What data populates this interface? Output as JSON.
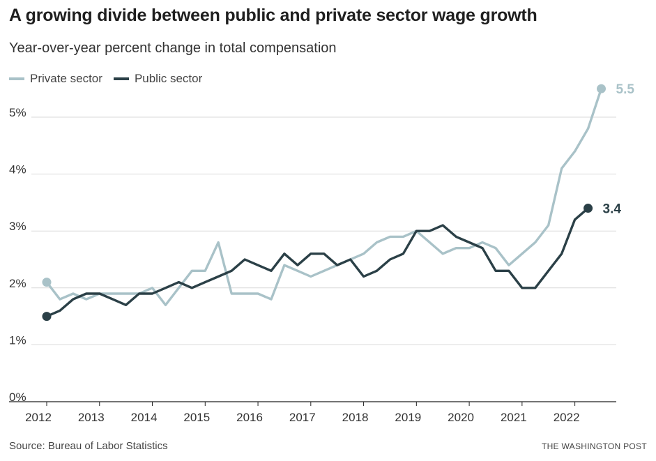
{
  "header": {
    "title": "A growing divide between public and private sector wage growth",
    "subtitle": "Year-over-year percent change in total compensation"
  },
  "footer": {
    "source": "Source: Bureau of Labor Statistics",
    "brand": "THE WASHINGTON POST"
  },
  "colors": {
    "private": "#a9c2c8",
    "public": "#2b4047",
    "grid": "#d9d9d9",
    "axis": "#222222"
  },
  "chart_data": {
    "type": "line",
    "xlim": [
      2012,
      2022.75
    ],
    "ylim": [
      0,
      5.5
    ],
    "yticks": [
      {
        "value": 0,
        "label": "0%"
      },
      {
        "value": 1,
        "label": "1%"
      },
      {
        "value": 2,
        "label": "2%"
      },
      {
        "value": 3,
        "label": "3%"
      },
      {
        "value": 4,
        "label": "4%"
      },
      {
        "value": 5,
        "label": "5%"
      }
    ],
    "xticks": [
      {
        "value": 2012,
        "label": "2012"
      },
      {
        "value": 2013,
        "label": "2013"
      },
      {
        "value": 2014,
        "label": "2014"
      },
      {
        "value": 2015,
        "label": "2015"
      },
      {
        "value": 2016,
        "label": "2016"
      },
      {
        "value": 2017,
        "label": "2017"
      },
      {
        "value": 2018,
        "label": "2018"
      },
      {
        "value": 2019,
        "label": "2019"
      },
      {
        "value": 2020,
        "label": "2020"
      },
      {
        "value": 2021,
        "label": "2021"
      },
      {
        "value": 2022,
        "label": "2022"
      }
    ],
    "grid": true,
    "legend": "top-left",
    "series": [
      {
        "name": "Private sector",
        "color": "#a9c2c8",
        "end_label": "5.5",
        "points": [
          [
            2012.0,
            2.1
          ],
          [
            2012.25,
            1.8
          ],
          [
            2012.5,
            1.9
          ],
          [
            2012.75,
            1.8
          ],
          [
            2013.0,
            1.9
          ],
          [
            2013.25,
            1.9
          ],
          [
            2013.5,
            1.9
          ],
          [
            2013.75,
            1.9
          ],
          [
            2014.0,
            2.0
          ],
          [
            2014.25,
            1.7
          ],
          [
            2014.5,
            2.0
          ],
          [
            2014.75,
            2.3
          ],
          [
            2015.0,
            2.3
          ],
          [
            2015.25,
            2.8
          ],
          [
            2015.5,
            1.9
          ],
          [
            2015.75,
            1.9
          ],
          [
            2016.0,
            1.9
          ],
          [
            2016.25,
            1.8
          ],
          [
            2016.5,
            2.4
          ],
          [
            2016.75,
            2.3
          ],
          [
            2017.0,
            2.2
          ],
          [
            2017.25,
            2.3
          ],
          [
            2017.5,
            2.4
          ],
          [
            2017.75,
            2.5
          ],
          [
            2018.0,
            2.6
          ],
          [
            2018.25,
            2.8
          ],
          [
            2018.5,
            2.9
          ],
          [
            2018.75,
            2.9
          ],
          [
            2019.0,
            3.0
          ],
          [
            2019.25,
            2.8
          ],
          [
            2019.5,
            2.6
          ],
          [
            2019.75,
            2.7
          ],
          [
            2020.0,
            2.7
          ],
          [
            2020.25,
            2.8
          ],
          [
            2020.5,
            2.7
          ],
          [
            2020.75,
            2.4
          ],
          [
            2021.0,
            2.6
          ],
          [
            2021.25,
            2.8
          ],
          [
            2021.5,
            3.1
          ],
          [
            2021.75,
            4.1
          ],
          [
            2022.0,
            4.4
          ],
          [
            2022.25,
            4.8
          ],
          [
            2022.5,
            5.5
          ]
        ]
      },
      {
        "name": "Public sector",
        "color": "#2b4047",
        "end_label": "3.4",
        "points": [
          [
            2012.0,
            1.5
          ],
          [
            2012.25,
            1.6
          ],
          [
            2012.5,
            1.8
          ],
          [
            2012.75,
            1.9
          ],
          [
            2013.0,
            1.9
          ],
          [
            2013.25,
            1.8
          ],
          [
            2013.5,
            1.7
          ],
          [
            2013.75,
            1.9
          ],
          [
            2014.0,
            1.9
          ],
          [
            2014.25,
            2.0
          ],
          [
            2014.5,
            2.1
          ],
          [
            2014.75,
            2.0
          ],
          [
            2015.0,
            2.1
          ],
          [
            2015.25,
            2.2
          ],
          [
            2015.5,
            2.3
          ],
          [
            2015.75,
            2.5
          ],
          [
            2016.0,
            2.4
          ],
          [
            2016.25,
            2.3
          ],
          [
            2016.5,
            2.6
          ],
          [
            2016.75,
            2.4
          ],
          [
            2017.0,
            2.6
          ],
          [
            2017.25,
            2.6
          ],
          [
            2017.5,
            2.4
          ],
          [
            2017.75,
            2.5
          ],
          [
            2018.0,
            2.2
          ],
          [
            2018.25,
            2.3
          ],
          [
            2018.5,
            2.5
          ],
          [
            2018.75,
            2.6
          ],
          [
            2019.0,
            3.0
          ],
          [
            2019.25,
            3.0
          ],
          [
            2019.5,
            3.1
          ],
          [
            2019.75,
            2.9
          ],
          [
            2020.0,
            2.8
          ],
          [
            2020.25,
            2.7
          ],
          [
            2020.5,
            2.3
          ],
          [
            2020.75,
            2.3
          ],
          [
            2021.0,
            2.0
          ],
          [
            2021.25,
            2.0
          ],
          [
            2021.5,
            2.3
          ],
          [
            2021.75,
            2.6
          ],
          [
            2022.0,
            3.2
          ],
          [
            2022.25,
            3.4
          ]
        ]
      }
    ]
  }
}
